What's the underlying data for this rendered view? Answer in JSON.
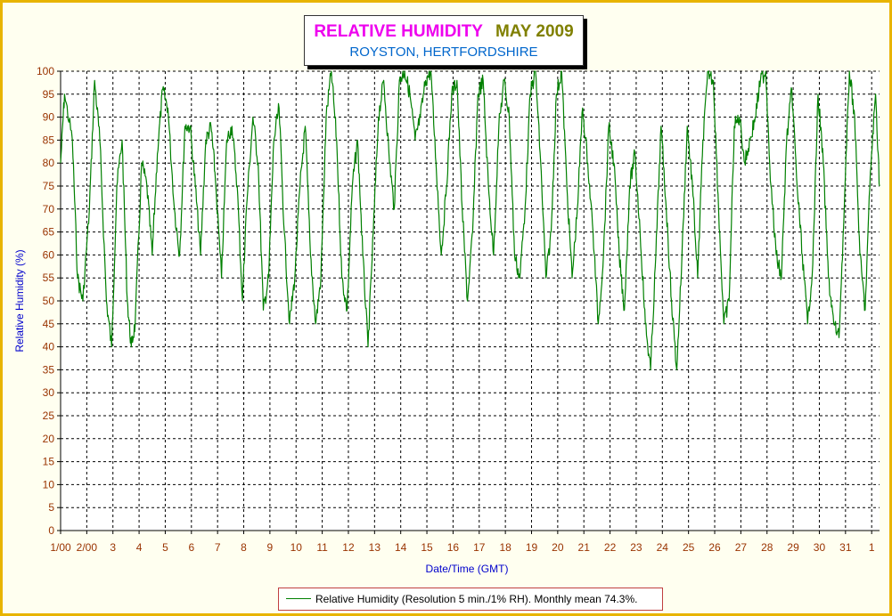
{
  "header": {
    "title": "RELATIVE HUMIDITY",
    "month": "MAY 2009",
    "subtitle": "ROYSTON, HERTFORDSHIRE"
  },
  "legend": {
    "text": "Relative Humidity (Resolution 5 min./1% RH). Monthly mean 74.3%."
  },
  "colors": {
    "series": "#008000",
    "frame": "#e8b400",
    "background": "#fffff0",
    "tick_labels": "#993300",
    "axis_labels": "#0000cc",
    "title": "#ee00ee",
    "month": "#808000",
    "subtitle": "#0066cc"
  },
  "chart_data": {
    "type": "line",
    "title": "RELATIVE HUMIDITY MAY 2009",
    "subtitle": "ROYSTON, HERTFORDSHIRE",
    "xlabel": "Date/Time (GMT)",
    "ylabel": "Relative Humidity (%)",
    "ylim": [
      0,
      100
    ],
    "yticks": [
      0,
      5,
      10,
      15,
      20,
      25,
      30,
      35,
      40,
      45,
      50,
      55,
      60,
      65,
      70,
      75,
      80,
      85,
      90,
      95,
      100
    ],
    "xlim": [
      1,
      32.3
    ],
    "xtick_positions": [
      1,
      2,
      3,
      4,
      5,
      6,
      7,
      8,
      9,
      10,
      11,
      12,
      13,
      14,
      15,
      16,
      17,
      18,
      19,
      20,
      21,
      22,
      23,
      24,
      25,
      26,
      27,
      28,
      29,
      30,
      31,
      32
    ],
    "xtick_labels": [
      "1/00",
      "2/00",
      "3",
      "4",
      "5",
      "6",
      "7",
      "8",
      "9",
      "10",
      "11",
      "12",
      "13",
      "14",
      "15",
      "16",
      "17",
      "18",
      "19",
      "20",
      "21",
      "22",
      "23",
      "24",
      "25",
      "26",
      "27",
      "28",
      "29",
      "30",
      "31",
      "1"
    ],
    "grid": true,
    "legend_position": "bottom-center",
    "series": [
      {
        "name": "Relative Humidity (Resolution 5 min./1% RH). Monthly mean 74.3%.",
        "x": [
          1.0,
          1.15,
          1.45,
          1.65,
          1.85,
          2.1,
          2.3,
          2.5,
          2.75,
          2.95,
          3.15,
          3.35,
          3.55,
          3.7,
          3.85,
          4.1,
          4.3,
          4.5,
          4.7,
          4.9,
          5.1,
          5.35,
          5.55,
          5.75,
          5.95,
          6.15,
          6.35,
          6.55,
          6.75,
          6.9,
          7.15,
          7.35,
          7.55,
          7.75,
          7.95,
          8.1,
          8.35,
          8.55,
          8.75,
          8.95,
          9.15,
          9.35,
          9.55,
          9.75,
          9.95,
          10.15,
          10.35,
          10.55,
          10.75,
          10.95,
          11.15,
          11.35,
          11.55,
          11.75,
          11.95,
          12.15,
          12.35,
          12.55,
          12.75,
          12.95,
          13.15,
          13.35,
          13.55,
          13.75,
          13.95,
          14.15,
          14.35,
          14.55,
          14.75,
          14.95,
          15.15,
          15.35,
          15.55,
          15.75,
          15.95,
          16.15,
          16.35,
          16.55,
          16.75,
          16.95,
          17.15,
          17.35,
          17.55,
          17.75,
          17.95,
          18.15,
          18.35,
          18.55,
          18.75,
          18.95,
          19.15,
          19.35,
          19.55,
          19.75,
          19.95,
          20.15,
          20.35,
          20.55,
          20.75,
          20.95,
          21.15,
          21.35,
          21.55,
          21.75,
          21.95,
          22.15,
          22.35,
          22.55,
          22.75,
          22.95,
          23.15,
          23.35,
          23.55,
          23.75,
          23.95,
          24.15,
          24.35,
          24.55,
          24.75,
          24.95,
          25.15,
          25.35,
          25.55,
          25.75,
          25.95,
          26.15,
          26.35,
          26.55,
          26.75,
          26.95,
          27.15,
          27.35,
          27.55,
          27.75,
          27.95,
          28.15,
          28.35,
          28.55,
          28.75,
          28.95,
          29.15,
          29.35,
          29.55,
          29.75,
          29.95,
          30.15,
          30.35,
          30.55,
          30.75,
          30.95,
          31.15,
          31.35,
          31.55,
          31.75,
          31.95,
          32.15,
          32.3
        ],
        "y": [
          80,
          95,
          85,
          55,
          50,
          70,
          98,
          85,
          50,
          40,
          75,
          85,
          50,
          40,
          45,
          80,
          75,
          60,
          82,
          96,
          92,
          70,
          60,
          88,
          88,
          75,
          60,
          85,
          88,
          78,
          55,
          85,
          88,
          75,
          50,
          70,
          90,
          80,
          48,
          55,
          85,
          92,
          65,
          45,
          55,
          75,
          88,
          60,
          45,
          55,
          90,
          100,
          85,
          55,
          48,
          75,
          85,
          60,
          40,
          65,
          90,
          98,
          82,
          70,
          98,
          100,
          95,
          85,
          90,
          98,
          100,
          80,
          60,
          75,
          95,
          98,
          70,
          50,
          65,
          95,
          98,
          75,
          60,
          88,
          98,
          90,
          60,
          55,
          70,
          95,
          100,
          80,
          55,
          65,
          95,
          100,
          75,
          55,
          70,
          92,
          80,
          65,
          45,
          60,
          88,
          80,
          60,
          48,
          75,
          82,
          65,
          45,
          35,
          60,
          88,
          70,
          50,
          35,
          60,
          88,
          75,
          55,
          85,
          100,
          98,
          70,
          45,
          50,
          88,
          90,
          80,
          85,
          90,
          98,
          100,
          75,
          60,
          55,
          85,
          96,
          75,
          60,
          45,
          58,
          95,
          80,
          55,
          45,
          42,
          70,
          100,
          90,
          60,
          48,
          78,
          95,
          75
        ]
      }
    ]
  }
}
